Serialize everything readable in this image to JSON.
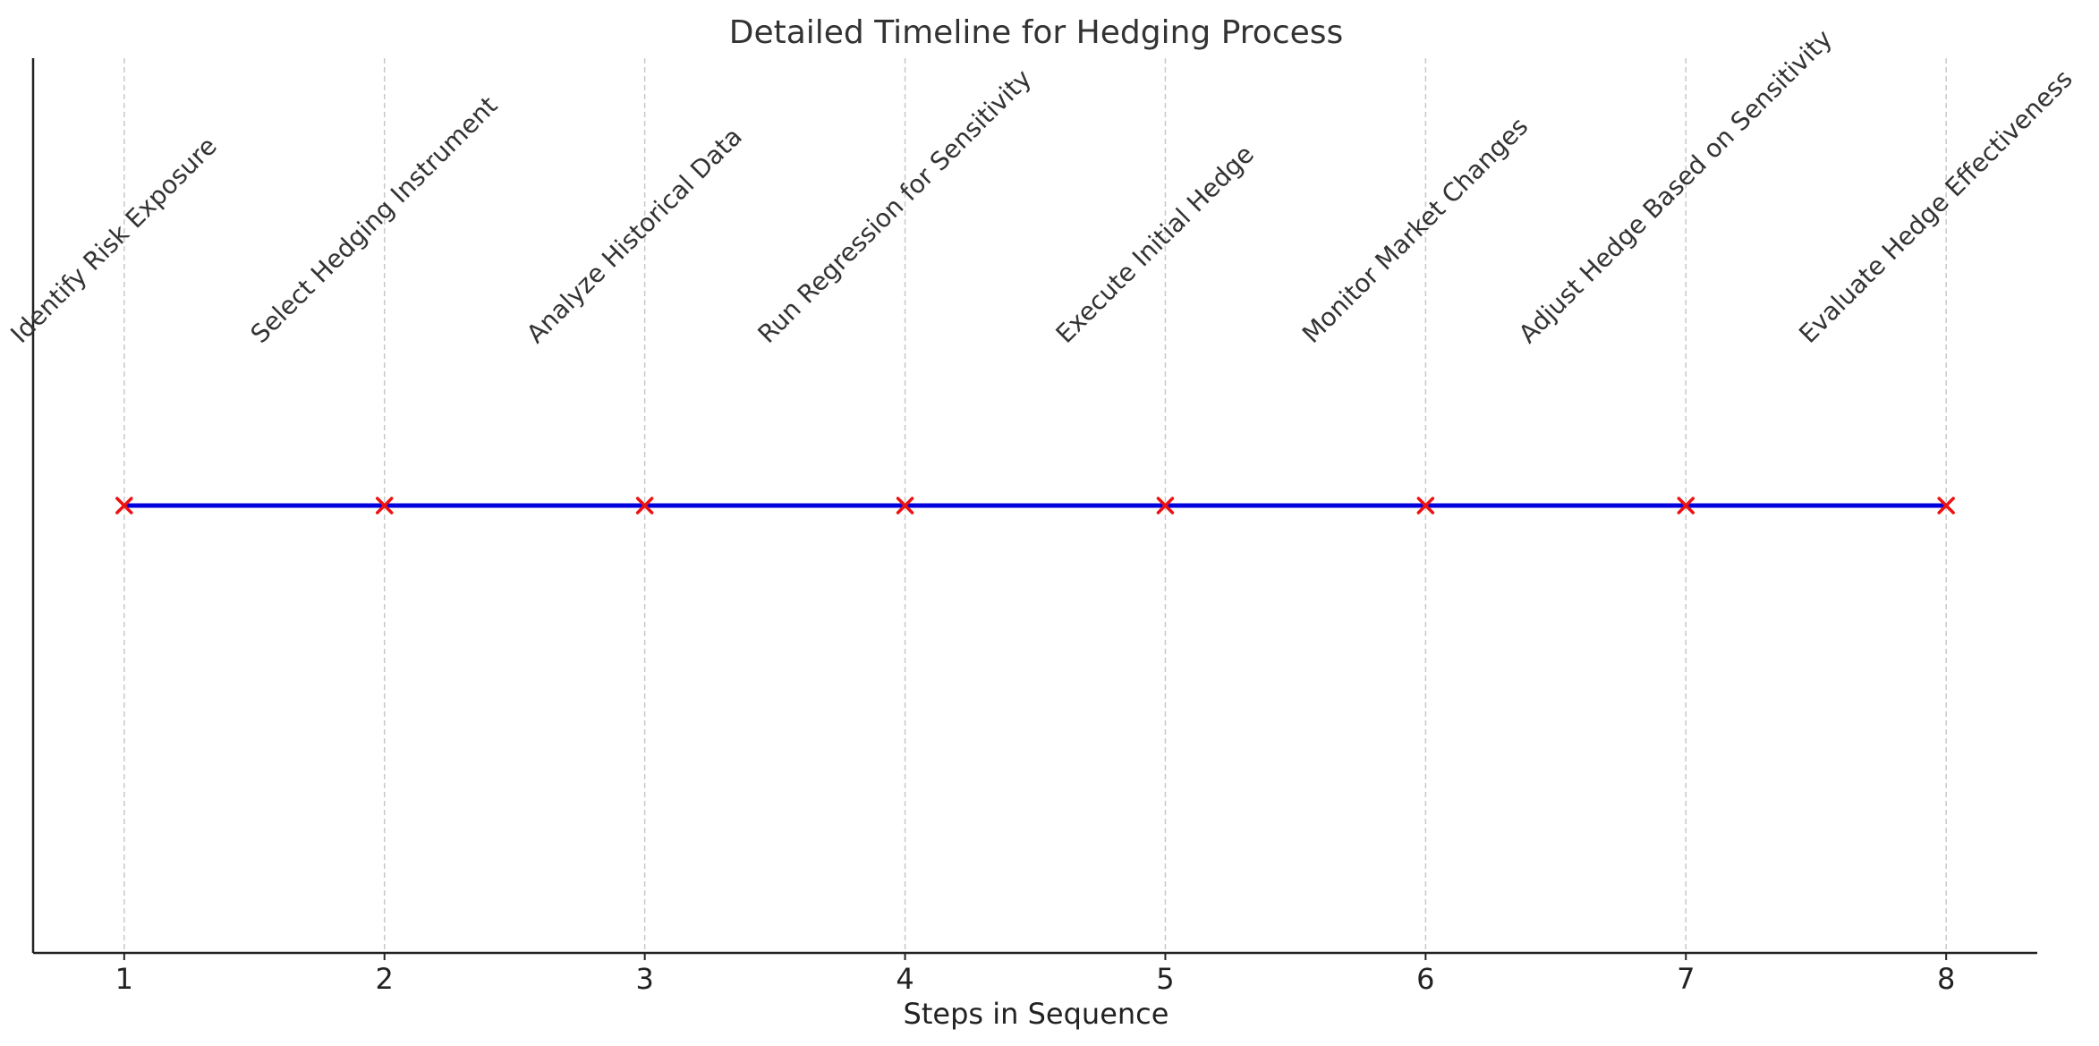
{
  "chart_data": {
    "type": "line",
    "title": "Detailed Timeline for Hedging Process",
    "xlabel": "Steps in Sequence",
    "ylabel": "",
    "x": [
      1,
      2,
      3,
      4,
      5,
      6,
      7,
      8
    ],
    "y": [
      1,
      1,
      1,
      1,
      1,
      1,
      1,
      1
    ],
    "xlim": [
      0.65,
      8.35
    ],
    "ylim": [
      0.5,
      1.5
    ],
    "x_ticks": [
      "1",
      "2",
      "3",
      "4",
      "5",
      "6",
      "7",
      "8"
    ],
    "step_labels": [
      "Identify Risk Exposure",
      "Select Hedging Instrument",
      "Analyze Historical Data",
      "Run Regression for Sensitivity",
      "Execute Initial Hedge",
      "Monitor Market Changes",
      "Adjust Hedge Based on Sensitivity",
      "Evaluate Hedge Effectiveness"
    ],
    "grid": "vertical dashed",
    "line_color": "#0000dd",
    "marker_color": "#ee1111",
    "marker": "x",
    "legend": "none"
  }
}
